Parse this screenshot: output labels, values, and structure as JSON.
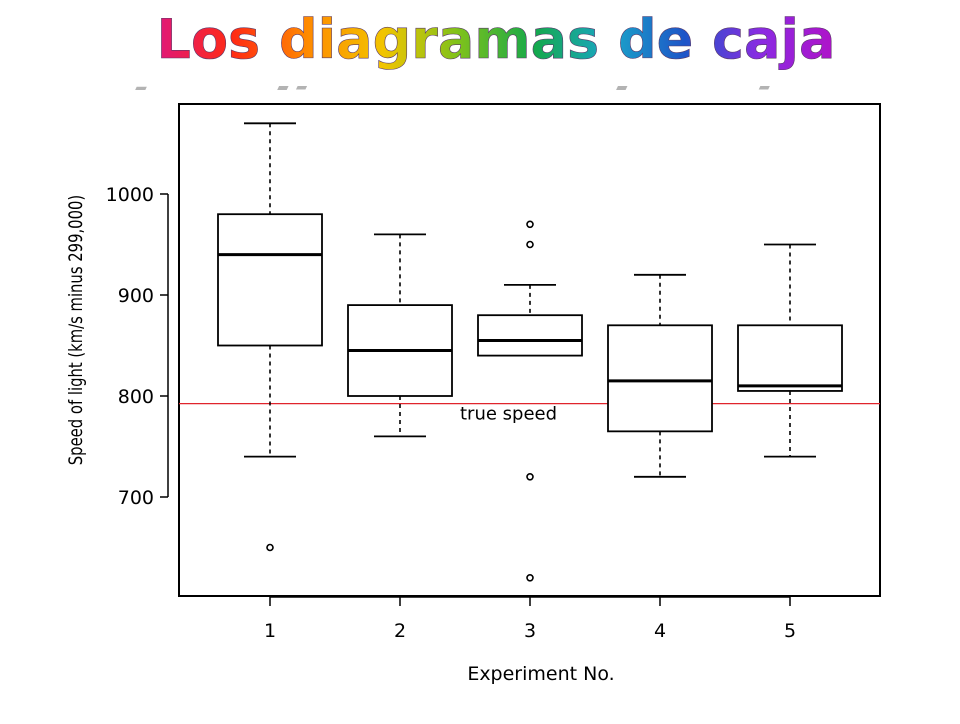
{
  "slide": {
    "title": "Los diagramas de caja"
  },
  "colors": {
    "title_gradient": [
      "#e0177a",
      "#ff2a14",
      "#ff8a00",
      "#f2c400",
      "#7fc21b",
      "#14a84a",
      "#1aa6c9",
      "#1e55c8",
      "#8a2be2",
      "#b012c8"
    ],
    "title_shadow": "#9a9a9a",
    "reference_line": "#e0242c",
    "axis": "#000000"
  },
  "chart_data": {
    "type": "boxplot",
    "xlabel": "Experiment No.",
    "ylabel": "Speed of light (km/s minus 299,000)",
    "categories": [
      "1",
      "2",
      "3",
      "4",
      "5"
    ],
    "ylim": [
      600,
      1100
    ],
    "yticks": [
      700,
      800,
      900,
      1000
    ],
    "boxes": [
      {
        "category": "1",
        "whisker_low": 740,
        "q1": 850,
        "median": 940,
        "q3": 980,
        "whisker_high": 1070,
        "outliers": [
          650
        ]
      },
      {
        "category": "2",
        "whisker_low": 760,
        "q1": 800,
        "median": 845,
        "q3": 890,
        "whisker_high": 960,
        "outliers": []
      },
      {
        "category": "3",
        "whisker_low": 840,
        "q1": 840,
        "median": 855,
        "q3": 880,
        "whisker_high": 910,
        "outliers": [
          950,
          970,
          720,
          620
        ]
      },
      {
        "category": "4",
        "whisker_low": 720,
        "q1": 765,
        "median": 815,
        "q3": 870,
        "whisker_high": 920,
        "outliers": []
      },
      {
        "category": "5",
        "whisker_low": 740,
        "q1": 805,
        "median": 810,
        "q3": 870,
        "whisker_high": 950,
        "outliers": []
      }
    ],
    "reference_line": {
      "value": 792.458,
      "label": "true speed"
    },
    "grid": false,
    "legend": "none"
  }
}
